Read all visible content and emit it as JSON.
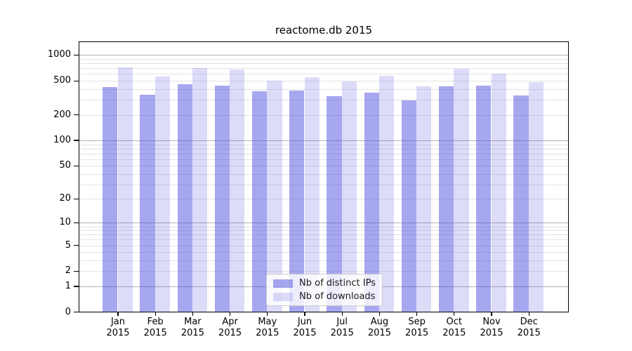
{
  "title": "reactome.db 2015",
  "chart_data": {
    "type": "bar",
    "title": "reactome.db 2015",
    "y_scale": "log(1+x)",
    "grid": true,
    "legend_position": "lower center inside plot",
    "categories": [
      "Jan 2015",
      "Feb 2015",
      "Mar 2015",
      "Apr 2015",
      "May 2015",
      "Jun 2015",
      "Jul 2015",
      "Aug 2015",
      "Sep 2015",
      "Oct 2015",
      "Nov 2015",
      "Dec 2015"
    ],
    "series": [
      {
        "name": "Nb of distinct IPs",
        "color": "rgba(80,80,224,0.5)",
        "values": [
          420,
          340,
          455,
          435,
          375,
          380,
          330,
          360,
          295,
          425,
          435,
          335
        ]
      },
      {
        "name": "Nb of downloads",
        "color": "rgba(80,80,224,0.2)",
        "values": [
          705,
          560,
          700,
          670,
          500,
          545,
          490,
          565,
          425,
          690,
          600,
          480
        ]
      }
    ],
    "y_ticks": [
      0,
      1,
      2,
      5,
      10,
      20,
      50,
      100,
      200,
      500,
      1000
    ],
    "major_gridlines": [
      1,
      10,
      100,
      1000
    ],
    "minor_gridlines": [
      2,
      3,
      4,
      5,
      6,
      7,
      8,
      9,
      20,
      30,
      40,
      50,
      60,
      70,
      80,
      90,
      200,
      300,
      400,
      500,
      600,
      700,
      800,
      900
    ],
    "ylim": [
      0,
      1430
    ],
    "xlabel": "",
    "ylabel": ""
  },
  "colors": {
    "bar_distinct_ips": "rgba(80,80,224,0.5)",
    "bar_downloads": "rgba(80,80,224,0.2)",
    "major_grid": "#b2b2b2",
    "minor_grid": "#e3e3e3",
    "spine": "#000000",
    "legend_border": "#cccccc",
    "legend_background": "rgba(255,255,255,0.8)",
    "text": "#000000"
  }
}
